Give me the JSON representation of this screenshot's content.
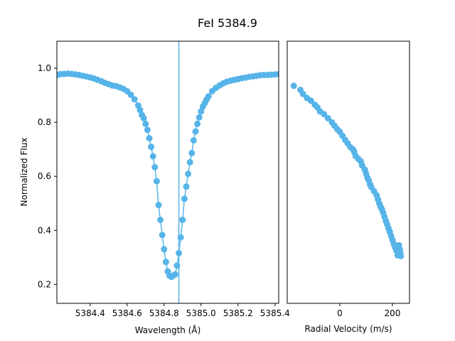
{
  "title": "FeI 5384.9",
  "colors": {
    "series": "#56b4e9",
    "marker": "#56b4e9",
    "refline": "#56b4e9",
    "axis": "#000000"
  },
  "chart_data": [
    {
      "type": "line",
      "xlabel": "Wavelength (Å)",
      "ylabel": "Normalized Flux",
      "xlim": [
        5384.22,
        5385.42
      ],
      "ylim": [
        0.13,
        1.1
      ],
      "xticks": [
        5384.4,
        5384.6,
        5384.8,
        5385.0,
        5385.2,
        5385.4
      ],
      "xtick_labels": [
        "5384.4",
        "5384.6",
        "5384.8",
        "5385.0",
        "5385.2",
        "5385.4"
      ],
      "yticks": [
        0.2,
        0.4,
        0.6,
        0.8,
        1.0
      ],
      "ytick_labels": [
        "0.2",
        "0.4",
        "0.6",
        "0.8",
        "1.0"
      ],
      "reference_line_x": 5384.88,
      "markers": true,
      "x": [
        5384.22,
        5384.24,
        5384.26,
        5384.28,
        5384.3,
        5384.32,
        5384.34,
        5384.36,
        5384.38,
        5384.4,
        5384.42,
        5384.44,
        5384.46,
        5384.48,
        5384.5,
        5384.52,
        5384.54,
        5384.56,
        5384.58,
        5384.6,
        5384.62,
        5384.64,
        5384.66,
        5384.67,
        5384.68,
        5384.69,
        5384.7,
        5384.71,
        5384.72,
        5384.73,
        5384.74,
        5384.75,
        5384.76,
        5384.77,
        5384.78,
        5384.79,
        5384.8,
        5384.81,
        5384.82,
        5384.83,
        5384.84,
        5384.85,
        5384.86,
        5384.87,
        5384.88,
        5384.89,
        5384.9,
        5384.91,
        5384.92,
        5384.93,
        5384.94,
        5384.95,
        5384.96,
        5384.97,
        5384.98,
        5384.99,
        5385.0,
        5385.01,
        5385.02,
        5385.03,
        5385.04,
        5385.06,
        5385.08,
        5385.1,
        5385.12,
        5385.14,
        5385.16,
        5385.18,
        5385.2,
        5385.22,
        5385.24,
        5385.26,
        5385.28,
        5385.3,
        5385.32,
        5385.34,
        5385.36,
        5385.38,
        5385.4,
        5385.42
      ],
      "y": [
        0.975,
        0.978,
        0.979,
        0.98,
        0.979,
        0.977,
        0.975,
        0.972,
        0.969,
        0.966,
        0.962,
        0.957,
        0.952,
        0.946,
        0.941,
        0.936,
        0.934,
        0.929,
        0.924,
        0.915,
        0.902,
        0.885,
        0.862,
        0.845,
        0.827,
        0.815,
        0.794,
        0.772,
        0.741,
        0.709,
        0.674,
        0.634,
        0.582,
        0.494,
        0.439,
        0.383,
        0.33,
        0.283,
        0.248,
        0.232,
        0.228,
        0.233,
        0.237,
        0.27,
        0.316,
        0.374,
        0.439,
        0.517,
        0.562,
        0.609,
        0.652,
        0.686,
        0.733,
        0.766,
        0.794,
        0.818,
        0.84,
        0.858,
        0.871,
        0.884,
        0.896,
        0.915,
        0.927,
        0.936,
        0.944,
        0.95,
        0.954,
        0.957,
        0.96,
        0.963,
        0.965,
        0.968,
        0.97,
        0.972,
        0.974,
        0.975,
        0.975,
        0.976,
        0.977,
        0.978
      ]
    },
    {
      "type": "scatter",
      "xlabel": "Radial Velocity (m/s)",
      "xlim": [
        -200,
        265
      ],
      "ylim": [
        0.13,
        1.1
      ],
      "xticks": [
        0,
        200
      ],
      "xtick_labels": [
        "0",
        "200"
      ],
      "markers": true,
      "x": [
        -175,
        -150,
        -140,
        -125,
        -110,
        -95,
        -85,
        -75,
        -60,
        -45,
        -30,
        -20,
        -10,
        0,
        10,
        20,
        30,
        40,
        50,
        55,
        60,
        70,
        80,
        85,
        95,
        100,
        105,
        110,
        115,
        120,
        130,
        140,
        145,
        150,
        155,
        160,
        165,
        170,
        175,
        180,
        185,
        190,
        195,
        200,
        205,
        210,
        215,
        220,
        225,
        228,
        230,
        232
      ],
      "y": [
        0.935,
        0.92,
        0.905,
        0.89,
        0.88,
        0.865,
        0.855,
        0.84,
        0.83,
        0.815,
        0.8,
        0.787,
        0.775,
        0.765,
        0.75,
        0.735,
        0.722,
        0.708,
        0.7,
        0.69,
        0.675,
        0.665,
        0.655,
        0.64,
        0.625,
        0.61,
        0.595,
        0.585,
        0.57,
        0.56,
        0.545,
        0.53,
        0.515,
        0.5,
        0.488,
        0.478,
        0.465,
        0.45,
        0.435,
        0.422,
        0.408,
        0.395,
        0.38,
        0.365,
        0.35,
        0.338,
        0.325,
        0.308,
        0.345,
        0.33,
        0.318,
        0.305
      ]
    }
  ]
}
